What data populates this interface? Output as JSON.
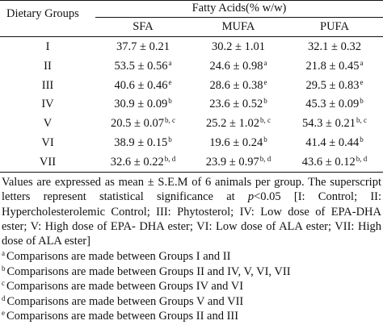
{
  "table": {
    "row_header": "Dietary Groups",
    "group_header": "Fatty Acids(% w/w)",
    "columns": [
      "SFA",
      "MUFA",
      "PUFA"
    ],
    "rows": [
      {
        "group": "I",
        "cells": [
          {
            "v": "37.7 ± 0.21",
            "sup": ""
          },
          {
            "v": "30.2 ± 1.01",
            "sup": ""
          },
          {
            "v": "32.1 ± 0.32",
            "sup": ""
          }
        ]
      },
      {
        "group": "II",
        "cells": [
          {
            "v": "53.5 ± 0.56",
            "sup": "a"
          },
          {
            "v": "24.6 ± 0.98",
            "sup": "a"
          },
          {
            "v": "21.8 ± 0.45",
            "sup": "a"
          }
        ]
      },
      {
        "group": "III",
        "cells": [
          {
            "v": "40.6 ± 0.46",
            "sup": "e"
          },
          {
            "v": "28.6 ± 0.38",
            "sup": "e"
          },
          {
            "v": "29.5 ± 0.83",
            "sup": "e"
          }
        ]
      },
      {
        "group": "IV",
        "cells": [
          {
            "v": "30.9 ± 0.09",
            "sup": "b"
          },
          {
            "v": "23.6 ± 0.52",
            "sup": "b"
          },
          {
            "v": "45.3 ± 0.09",
            "sup": "b"
          }
        ]
      },
      {
        "group": "V",
        "cells": [
          {
            "v": "20.5 ± 0.07",
            "sup": "b, c"
          },
          {
            "v": "25.2 ± 1.02",
            "sup": "b, c"
          },
          {
            "v": "54.3 ± 0.21",
            "sup": "b, c"
          }
        ]
      },
      {
        "group": "VI",
        "cells": [
          {
            "v": "38.9 ± 0.15",
            "sup": "b"
          },
          {
            "v": "19.6 ± 0.24",
            "sup": "b"
          },
          {
            "v": "41.4 ± 0.44",
            "sup": "b"
          }
        ]
      },
      {
        "group": "VII",
        "cells": [
          {
            "v": "32.6 ± 0.22",
            "sup": "b, d"
          },
          {
            "v": "23.9 ± 0.97",
            "sup": "b, d"
          },
          {
            "v": "43.6 ± 0.12",
            "sup": "b, d"
          }
        ]
      }
    ]
  },
  "footnotes": {
    "main_before_p": "Values are expressed as mean ± S.E.M of 6 animals per group. The superscript letters represent statistical significance at ",
    "p_symbol": "p",
    "main_after_p": "<0.05 [I: Control; II: Hypercholesterolemic Control; III: Phytosterol; IV: Low dose of EPA-DHA ester; V: High dose of EPA- DHA ester; VI: Low dose of ALA ester; VII: High dose of ALA ester]",
    "comparisons": [
      {
        "mark": "a",
        "text": "Comparisons are made between Groups I and II"
      },
      {
        "mark": "b",
        "text": "Comparisons are made between Groups II and IV, V, VI, VII"
      },
      {
        "mark": "c",
        "text": "Comparisons are made between Groups IV and VI"
      },
      {
        "mark": "d",
        "text": "Comparisons are made between Groups V and VII"
      },
      {
        "mark": "e",
        "text": "Comparisons are made between Groups II and III"
      }
    ]
  }
}
